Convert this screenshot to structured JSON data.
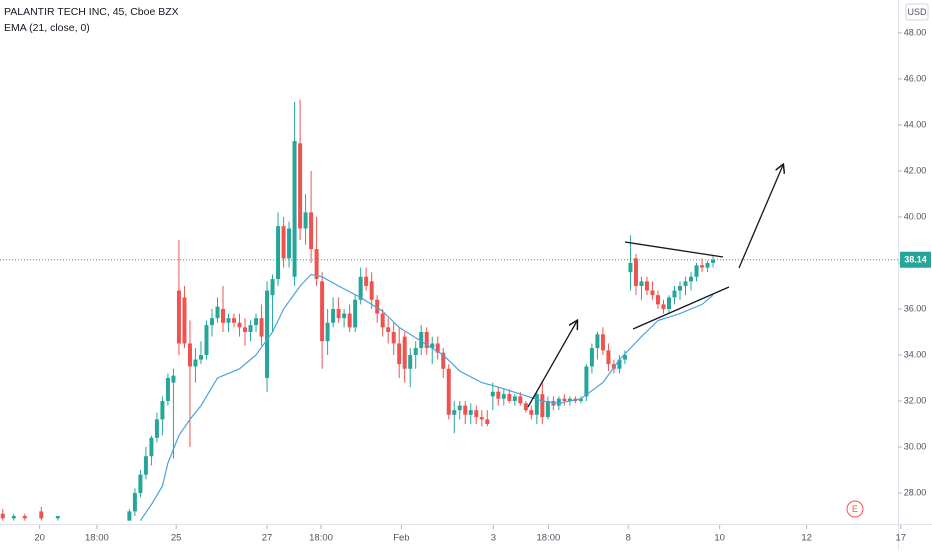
{
  "chart_data": {
    "type": "candlestick",
    "title": "PALANTIR TECH INC, 45, Cboe BZX",
    "indicator": "EMA (21, close, 0)",
    "currency": "USD",
    "event_marker": "E",
    "last_price": 38.14,
    "up_color": "#26a69a",
    "down_color": "#ef5350",
    "ema_color": "#4aa3df",
    "ylim": [
      26.74,
      49.43
    ],
    "xlim": [
      -0.5,
      163.5
    ],
    "yticks": [
      {
        "value": 28,
        "label": "28.00"
      },
      {
        "value": 30,
        "label": "30.00"
      },
      {
        "value": 32,
        "label": "32.00"
      },
      {
        "value": 34,
        "label": "34.00"
      },
      {
        "value": 36,
        "label": "36.00"
      },
      {
        "value": 38,
        "label": "38.00"
      },
      {
        "value": 40,
        "label": "40.00"
      },
      {
        "value": 42,
        "label": "42.00"
      },
      {
        "value": 44,
        "label": "44.00"
      },
      {
        "value": 46,
        "label": "46.00"
      },
      {
        "value": 48,
        "label": "48.00"
      }
    ],
    "xticks": [
      {
        "value": 6.7,
        "label": "20"
      },
      {
        "value": 17.1,
        "label": "18:00"
      },
      {
        "value": 31.5,
        "label": "25"
      },
      {
        "value": 48,
        "label": "27"
      },
      {
        "value": 57.8,
        "label": "18:00"
      },
      {
        "value": 72.4,
        "label": "Feb"
      },
      {
        "value": 89.1,
        "label": "3"
      },
      {
        "value": 99.1,
        "label": "18:00"
      },
      {
        "value": 113.6,
        "label": "8"
      },
      {
        "value": 130.2,
        "label": "10"
      },
      {
        "value": 146,
        "label": "12"
      },
      {
        "value": 163.1,
        "label": "17"
      }
    ],
    "candles": {
      "x": [
        0,
        2,
        4,
        7,
        10,
        23,
        24,
        25,
        26,
        27,
        28,
        29,
        30,
        31,
        32,
        33,
        34,
        35,
        36,
        37,
        38,
        39,
        40,
        41,
        42,
        43,
        44,
        45,
        46,
        47,
        48,
        49,
        50,
        51,
        52,
        53,
        54,
        55,
        56,
        57,
        58,
        59,
        60,
        61,
        62,
        63,
        64,
        65,
        66,
        67,
        68,
        69,
        70,
        71,
        72,
        73,
        74,
        75,
        76,
        77,
        78,
        79,
        80,
        81,
        82,
        83,
        84,
        85,
        86,
        87,
        88,
        89,
        90,
        91,
        92,
        93,
        94,
        95,
        96,
        97,
        98,
        99,
        100,
        101,
        102,
        103,
        104,
        105,
        106,
        107,
        108,
        109,
        110,
        111,
        112,
        113,
        114,
        115,
        116,
        117,
        118,
        119,
        120,
        121,
        122,
        123,
        124,
        125,
        126,
        127,
        128,
        129
      ],
      "open": [
        27.1,
        26.9,
        27.0,
        27.2,
        26.9,
        26.8,
        27.2,
        28.0,
        28.8,
        29.6,
        30.4,
        31.2,
        32.0,
        32.8,
        36.8,
        36.5,
        34.5,
        33.5,
        33.8,
        34.0,
        35.3,
        35.6,
        36.0,
        35.4,
        35.6,
        35.4,
        35.2,
        35.0,
        35.3,
        35.6,
        33.0,
        36.6,
        37.3,
        39.6,
        38.2,
        37.4,
        43.2,
        39.5,
        40.2,
        38.6,
        37.2,
        34.6,
        35.4,
        36.0,
        35.6,
        35.8,
        35.2,
        36.4,
        37.4,
        37.2,
        36.4,
        35.8,
        35.2,
        35.0,
        34.5,
        34.8,
        33.4,
        34.0,
        34.3,
        35.0,
        34.3,
        34.5,
        34.1,
        33.4,
        31.4,
        31.6,
        31.8,
        31.4,
        31.6,
        31.3,
        31.2,
        32.2,
        32.4,
        32.1,
        32.3,
        32.0,
        32.2,
        31.9,
        31.6,
        31.4,
        32.3,
        31.3,
        32.0,
        31.8,
        32.1,
        32.0,
        32.1,
        32.0,
        32.2,
        33.5,
        34.3,
        34.9,
        34.2,
        33.6,
        33.4,
        33.8,
        37.6,
        38.2,
        37.0,
        37.2,
        36.8,
        36.6,
        36.2,
        36.0,
        36.5,
        36.8,
        37.0,
        37.2,
        37.4,
        37.9,
        37.8,
        38.0
      ],
      "high": [
        27.3,
        27.1,
        27.1,
        27.4,
        27.0,
        27.3,
        28.2,
        29.0,
        30.0,
        30.5,
        31.5,
        32.2,
        33.2,
        33.4,
        39.0,
        37.0,
        35.5,
        34.3,
        34.6,
        35.5,
        36.0,
        36.5,
        37.0,
        35.8,
        35.8,
        35.8,
        35.6,
        35.5,
        35.8,
        36.2,
        37.2,
        37.5,
        40.2,
        40.0,
        39.8,
        45.0,
        45.1,
        41.0,
        42.0,
        40.0,
        37.6,
        36.0,
        36.5,
        36.5,
        36.0,
        36.2,
        36.6,
        37.8,
        37.8,
        37.6,
        36.6,
        36.0,
        35.6,
        35.4,
        35.2,
        35.0,
        34.3,
        34.6,
        35.3,
        35.2,
        34.8,
        34.8,
        34.3,
        33.6,
        32.0,
        32.0,
        32.0,
        31.9,
        31.8,
        31.6,
        31.6,
        32.8,
        32.6,
        32.5,
        32.5,
        32.3,
        32.4,
        32.0,
        31.8,
        32.4,
        32.9,
        32.2,
        32.2,
        32.2,
        32.3,
        32.2,
        32.2,
        32.2,
        33.6,
        34.5,
        35.0,
        35.2,
        34.5,
        33.8,
        34.0,
        34.2,
        39.2,
        38.4,
        37.4,
        37.4,
        37.2,
        36.8,
        36.4,
        36.6,
        37.0,
        37.2,
        37.4,
        37.6,
        38.0,
        38.2,
        38.1,
        38.3
      ],
      "low": [
        26.8,
        26.8,
        26.8,
        26.8,
        26.8,
        26.8,
        27.0,
        27.8,
        28.6,
        29.2,
        30.2,
        30.5,
        31.8,
        29.5,
        34.0,
        34.3,
        30.0,
        32.8,
        33.6,
        33.8,
        34.8,
        35.4,
        35.0,
        35.0,
        35.2,
        34.8,
        34.4,
        34.6,
        35.0,
        34.4,
        32.4,
        35.0,
        37.0,
        37.8,
        37.8,
        37.0,
        39.0,
        38.8,
        38.0,
        37.0,
        33.4,
        34.0,
        35.2,
        35.4,
        35.2,
        35.0,
        35.0,
        36.2,
        36.8,
        36.0,
        35.4,
        34.8,
        34.5,
        34.0,
        33.0,
        32.8,
        32.6,
        33.4,
        34.0,
        34.0,
        33.6,
        33.8,
        33.0,
        31.2,
        30.6,
        31.2,
        31.0,
        31.0,
        31.0,
        30.9,
        30.9,
        31.6,
        31.8,
        31.8,
        31.9,
        31.8,
        31.8,
        31.5,
        31.2,
        31.0,
        31.0,
        31.2,
        31.6,
        31.6,
        31.8,
        31.8,
        31.9,
        31.9,
        32.0,
        33.2,
        33.8,
        34.0,
        33.3,
        33.2,
        33.2,
        33.6,
        36.8,
        36.6,
        36.4,
        36.6,
        36.4,
        36.0,
        35.8,
        35.8,
        36.2,
        36.4,
        36.6,
        36.8,
        37.2,
        37.6,
        37.6,
        37.8
      ],
      "close": [
        26.9,
        27.0,
        26.9,
        26.9,
        27.0,
        27.2,
        28.0,
        28.8,
        29.6,
        30.4,
        31.2,
        32.0,
        33.0,
        33.1,
        34.5,
        34.5,
        33.5,
        33.8,
        34.0,
        35.3,
        35.6,
        36.1,
        35.4,
        35.6,
        35.4,
        35.2,
        35.0,
        35.3,
        35.6,
        34.8,
        36.8,
        37.3,
        39.6,
        38.2,
        39.5,
        43.3,
        39.5,
        40.2,
        38.6,
        37.3,
        34.6,
        35.4,
        36.0,
        35.6,
        35.8,
        35.2,
        36.4,
        37.4,
        37.0,
        36.4,
        35.8,
        35.2,
        35.0,
        34.5,
        33.6,
        33.4,
        34.0,
        34.3,
        35.0,
        34.3,
        34.5,
        34.1,
        33.4,
        31.4,
        31.6,
        31.8,
        31.4,
        31.6,
        31.3,
        31.2,
        31.0,
        32.4,
        32.1,
        32.3,
        32.0,
        32.2,
        31.9,
        31.6,
        31.4,
        32.3,
        31.3,
        32.0,
        31.8,
        32.1,
        32.0,
        32.1,
        32.0,
        32.1,
        33.5,
        34.3,
        34.9,
        34.2,
        33.6,
        33.4,
        33.8,
        34.0,
        38.0,
        37.0,
        37.2,
        36.8,
        36.6,
        36.2,
        36.0,
        36.5,
        36.8,
        37.0,
        37.2,
        37.4,
        37.9,
        37.8,
        38.0,
        38.14
      ]
    },
    "ema": {
      "x": [
        25,
        27,
        29,
        30,
        32,
        34,
        36,
        38,
        39,
        43,
        46,
        49,
        51,
        54,
        56,
        58,
        61,
        65,
        69,
        72,
        76,
        80,
        83,
        87,
        90,
        94,
        98,
        101,
        105,
        109,
        112,
        116,
        119,
        123,
        127,
        129
      ],
      "values": [
        26.8,
        27.5,
        28.3,
        29.3,
        30.5,
        31.2,
        31.8,
        32.6,
        33.0,
        33.4,
        34.0,
        35.0,
        36.0,
        37.0,
        37.5,
        37.4,
        37.0,
        36.5,
        35.9,
        35.2,
        34.6,
        34.0,
        33.3,
        32.8,
        32.6,
        32.3,
        32.0,
        31.9,
        32.1,
        32.8,
        33.8,
        34.8,
        35.5,
        35.8,
        36.2,
        36.6
      ]
    }
  }
}
